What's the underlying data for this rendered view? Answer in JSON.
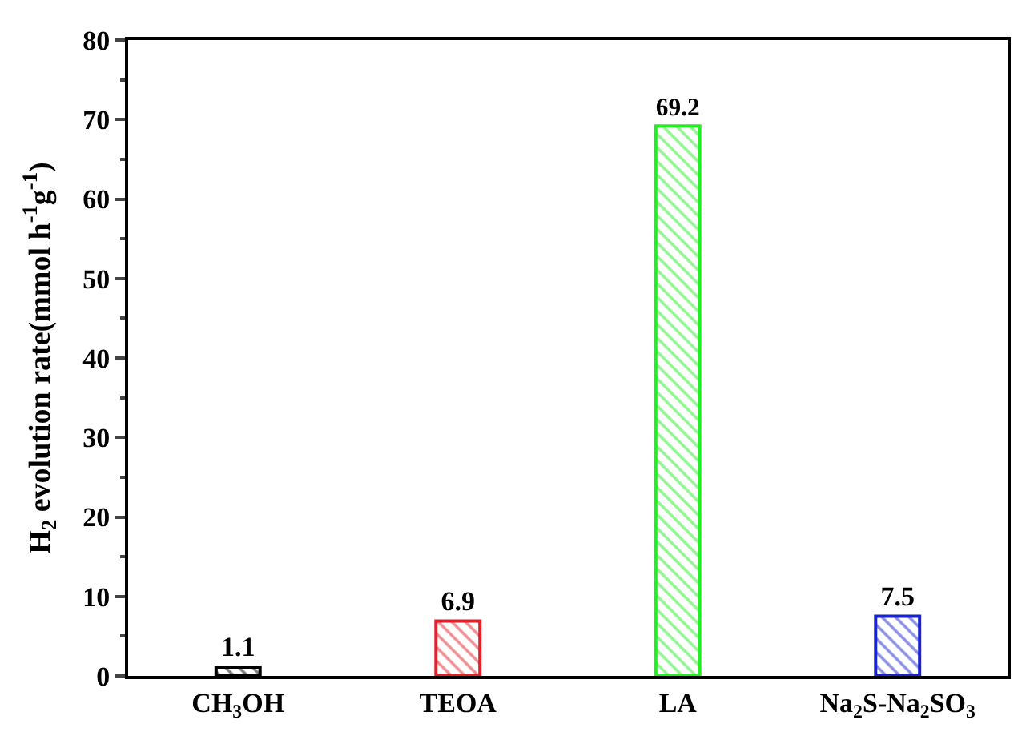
{
  "chart_data": {
    "type": "bar",
    "ylabel": "H$_{2}$ evolution rate(mmol h$^{-1}$g$^{-1}$)",
    "categories": [
      "CH$_{3}$OH",
      "TEOA",
      "LA",
      "Na$_{2}$S-Na$_{2}$SO$_{3}$"
    ],
    "values": [
      1.1,
      6.9,
      69.2,
      7.5
    ],
    "colors": [
      "#000000",
      "#e0202a",
      "#22ee22",
      "#1a22cc"
    ],
    "ylim": [
      0,
      80
    ],
    "yticks": [
      0,
      10,
      20,
      30,
      40,
      50,
      60,
      70,
      80
    ],
    "data_labels": true
  }
}
